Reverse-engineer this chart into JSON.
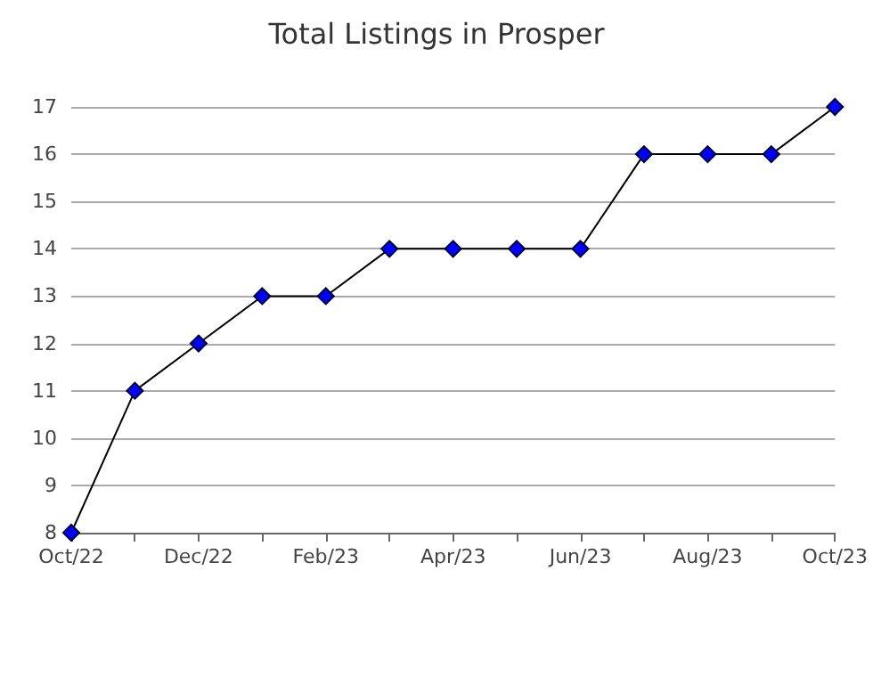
{
  "chart_data": {
    "type": "line",
    "title": "Total Listings in Prosper",
    "categories": [
      "Oct/22",
      null,
      "Dec/22",
      null,
      "Feb/23",
      null,
      "Apr/23",
      null,
      "Jun/23",
      null,
      "Aug/23",
      null,
      "Oct/23"
    ],
    "series": [
      {
        "color": "#0000ff",
        "values": [
          8,
          11,
          12,
          13,
          13,
          14,
          14,
          14,
          14,
          16,
          16,
          16,
          17
        ]
      }
    ],
    "ylim": [
      8,
      17
    ],
    "yticks": [
      8,
      9,
      10,
      11,
      12,
      13,
      14,
      15,
      16,
      17
    ],
    "grid": "y",
    "marker": "diamond",
    "line_style": "solid"
  }
}
